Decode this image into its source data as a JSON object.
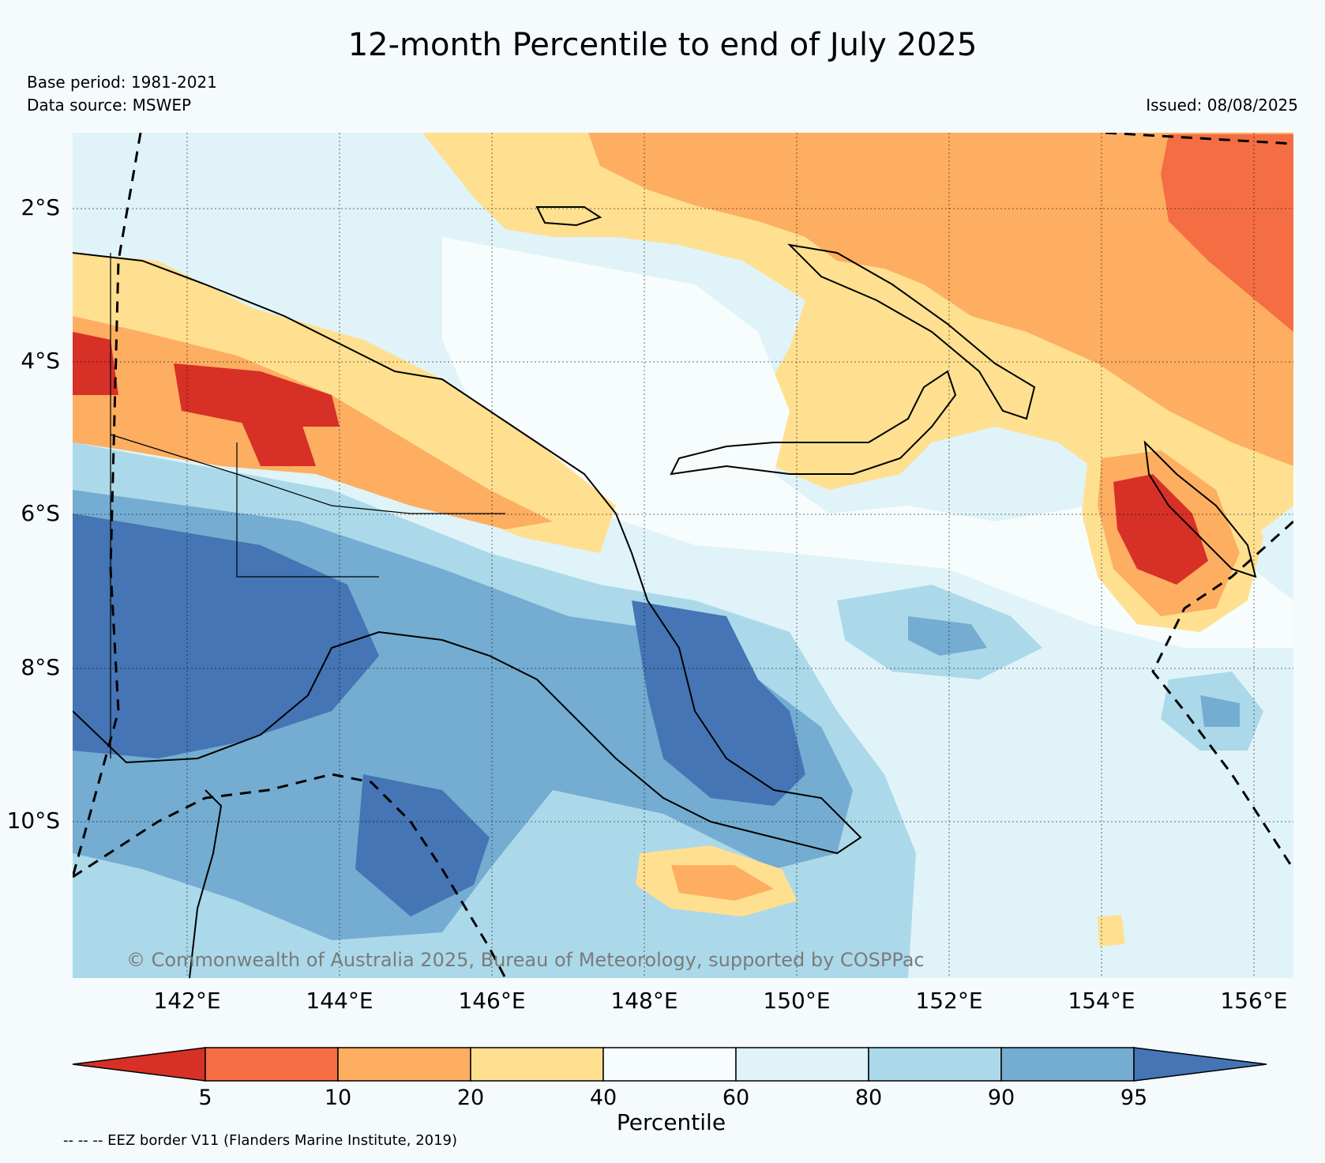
{
  "title": "12-month Percentile to end of July 2025",
  "base_period": "Base period: 1981-2021",
  "data_source": "Data source: MSWEP",
  "issued": "Issued: 08/08/2025",
  "copyright": "© Commonwealth of Australia 2025, Bureau of Meteorology, supported by COSPPac",
  "lat_ticks": [
    "2°S",
    "4°S",
    "6°S",
    "8°S",
    "10°S"
  ],
  "lon_ticks": [
    "142°E",
    "144°E",
    "146°E",
    "148°E",
    "150°E",
    "152°E",
    "154°E",
    "156°E"
  ],
  "colorbar": {
    "label": "Percentile",
    "ticks": [
      "5",
      "10",
      "20",
      "40",
      "60",
      "80",
      "90",
      "95"
    ],
    "colors": [
      "#d73027",
      "#f46d43",
      "#fdae61",
      "#fee090",
      "#f7fcfd",
      "#e0f3f8",
      "#abd9e9",
      "#74add1",
      "#4575b4"
    ]
  },
  "eez_note": "-- -- -- EEZ border V11 (Flanders Marine Institute, 2019)"
}
